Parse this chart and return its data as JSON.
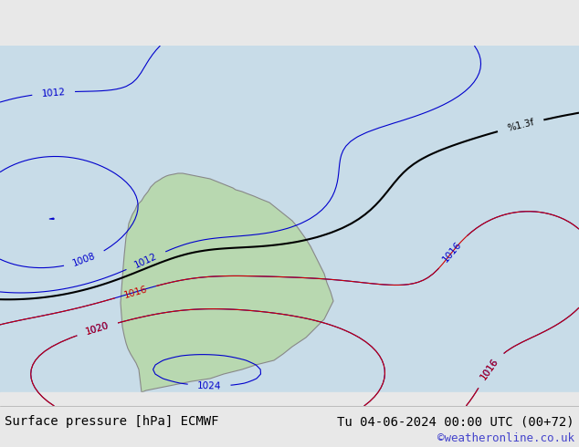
{
  "title_left": "Surface pressure [hPa] ECMWF",
  "title_right": "Tu 04-06-2024 00:00 UTC (00+72)",
  "copyright": "©weatheronline.co.uk",
  "bg_color": "#e8e8e8",
  "land_color": "#b8d8b0",
  "water_color": "#d0e8f0",
  "contour_blue_color": "#0000cc",
  "contour_red_color": "#cc0000",
  "contour_black_color": "#000000",
  "label_fontsize": 7.5,
  "footer_fontsize": 10,
  "copyright_fontsize": 9,
  "figsize": [
    6.34,
    4.9
  ],
  "dpi": 100
}
